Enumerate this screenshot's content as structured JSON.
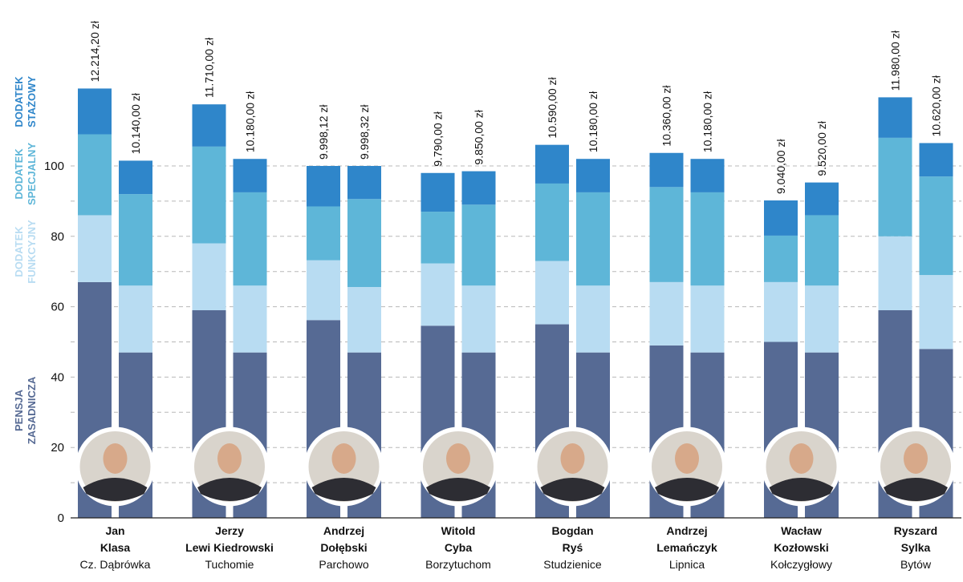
{
  "chart_data": {
    "type": "bar",
    "stacked": true,
    "ylim": [
      0,
      130
    ],
    "yticks": [
      0,
      20,
      40,
      60,
      80,
      100
    ],
    "grid": true,
    "legend_labels": [
      {
        "key": "pensja",
        "lines": [
          "PENSJA",
          "ZASADNICZA"
        ],
        "color": "#566A94"
      },
      {
        "key": "funkcyjny",
        "lines": [
          "DODATEK",
          "FUNKCYJNY"
        ],
        "color": "#B8DCF2"
      },
      {
        "key": "specjalny",
        "lines": [
          "DODATEK",
          "SPECJALNY"
        ],
        "color": "#5EB6D8"
      },
      {
        "key": "stazowy",
        "lines": [
          "DODATEK",
          "STAŻOWY"
        ],
        "color": "#2F86CA"
      }
    ],
    "series_colors": {
      "pensja": "#566A94",
      "funkcyjny": "#B8DCF2",
      "specjalny": "#5EB6D8",
      "stazowy": "#2F86CA"
    },
    "groups": [
      {
        "first": "Jan",
        "last": "Klasa",
        "place": "Cz. Dąbrówka",
        "bars": [
          {
            "label": "12.214,20 zł",
            "pensja": 67,
            "funkcyjny": 19,
            "specjalny": 23,
            "stazowy": 13
          },
          {
            "label": "10.140,00 zł",
            "pensja": 47,
            "funkcyjny": 19,
            "specjalny": 26,
            "stazowy": 9.5
          }
        ]
      },
      {
        "first": "Jerzy",
        "last": "Lewi Kiedrowski",
        "place": "Tuchomie",
        "bars": [
          {
            "label": "11.710,00 zł",
            "pensja": 59,
            "funkcyjny": 19,
            "specjalny": 27.5,
            "stazowy": 12
          },
          {
            "label": "10.180,00 zł",
            "pensja": 47,
            "funkcyjny": 19,
            "specjalny": 26.5,
            "stazowy": 9.5
          }
        ]
      },
      {
        "first": "Andrzej",
        "last": "Dołębski",
        "place": "Parchowo",
        "bars": [
          {
            "label": "9.998,12 zł",
            "pensja": 56.2,
            "funkcyjny": 17,
            "specjalny": 15.3,
            "stazowy": 11.5
          },
          {
            "label": "9.998,32 zł",
            "pensja": 47,
            "funkcyjny": 18.6,
            "specjalny": 25,
            "stazowy": 9.4
          }
        ]
      },
      {
        "first": "Witold",
        "last": "Cyba",
        "place": "Borzytuchom",
        "bars": [
          {
            "label": "9.790,00 zł",
            "pensja": 54.6,
            "funkcyjny": 17.7,
            "specjalny": 14.7,
            "stazowy": 11
          },
          {
            "label": "9.850,00 zł",
            "pensja": 47,
            "funkcyjny": 19,
            "specjalny": 23,
            "stazowy": 9.5
          }
        ]
      },
      {
        "first": "Bogdan",
        "last": "Ryś",
        "place": "Studzienice",
        "bars": [
          {
            "label": "10.590,00 zł",
            "pensja": 55,
            "funkcyjny": 18,
            "specjalny": 22,
            "stazowy": 11
          },
          {
            "label": "10.180,00 zł",
            "pensja": 47,
            "funkcyjny": 19,
            "specjalny": 26.5,
            "stazowy": 9.5
          }
        ]
      },
      {
        "first": "Andrzej",
        "last": "Lemańczyk",
        "place": "Lipnica",
        "bars": [
          {
            "label": "10.360,00 zł",
            "pensja": 49,
            "funkcyjny": 18,
            "specjalny": 27,
            "stazowy": 9.7
          },
          {
            "label": "10.180,00 zł",
            "pensja": 47,
            "funkcyjny": 19,
            "specjalny": 26.5,
            "stazowy": 9.5
          }
        ]
      },
      {
        "first": "Wacław",
        "last": "Kozłowski",
        "place": "Kołczygłowy",
        "bars": [
          {
            "label": "9.040,00 zł",
            "pensja": 50,
            "funkcyjny": 17,
            "specjalny": 13.2,
            "stazowy": 10
          },
          {
            "label": "9.520,00 zł",
            "pensja": 47,
            "funkcyjny": 19,
            "specjalny": 20,
            "stazowy": 9.3
          }
        ]
      },
      {
        "first": "Ryszard",
        "last": "Sylka",
        "place": "Bytów",
        "bars": [
          {
            "label": "11.980,00 zł",
            "pensja": 59,
            "funkcyjny": 21,
            "specjalny": 28,
            "stazowy": 11.5
          },
          {
            "label": "10.620,00 zł",
            "pensja": 48,
            "funkcyjny": 21,
            "specjalny": 28,
            "stazowy": 9.5
          }
        ]
      }
    ]
  }
}
